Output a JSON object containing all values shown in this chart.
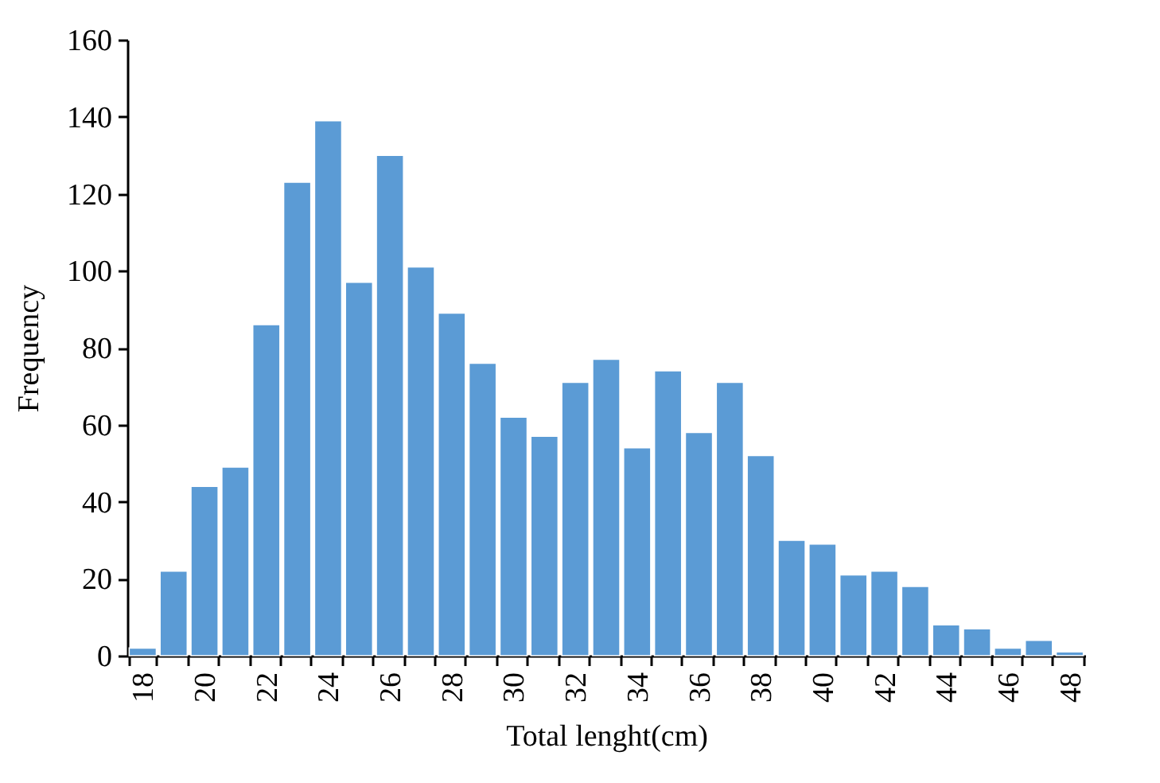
{
  "chart_data": {
    "type": "bar",
    "xlabel": "Total lenght(cm)",
    "ylabel": "Frequency",
    "categories": [
      "18",
      null,
      "20",
      null,
      "22",
      null,
      "24",
      null,
      "26",
      null,
      "28",
      null,
      "30",
      null,
      "32",
      null,
      "34",
      null,
      "36",
      null,
      "38",
      null,
      "40",
      null,
      "42",
      null,
      "44",
      null,
      "46",
      null,
      "48"
    ],
    "values": [
      2,
      22,
      44,
      49,
      86,
      123,
      139,
      97,
      130,
      101,
      89,
      76,
      62,
      57,
      71,
      77,
      54,
      74,
      58,
      71,
      52,
      30,
      29,
      21,
      22,
      18,
      8,
      7,
      2,
      4,
      1
    ],
    "color": "#5b9bd5",
    "ylim": [
      0,
      160
    ],
    "yticks": [
      0,
      20,
      40,
      60,
      80,
      100,
      120,
      140,
      160
    ],
    "grid": false
  }
}
